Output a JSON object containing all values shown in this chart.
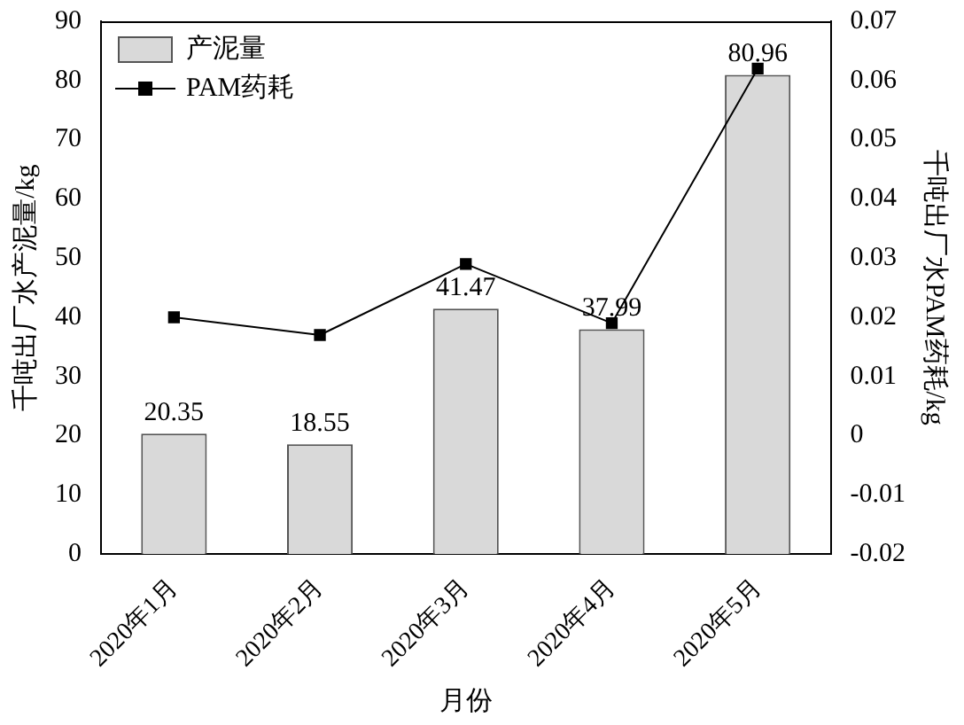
{
  "chart_data": {
    "type": "bar",
    "xlabel": "月份",
    "ylabel": "千吨出厂水产泥量/kg",
    "y2label": "千吨出厂水PAM药耗/kg",
    "categories": [
      "2020年1月",
      "2020年2月",
      "2020年3月",
      "2020年4月",
      "2020年5月"
    ],
    "series": [
      {
        "name": "产泥量",
        "color": "#d9d9d9",
        "values": [
          20.35,
          18.55,
          41.47,
          37.99,
          80.96
        ],
        "value_labels": [
          "20.35",
          "18.55",
          "41.47",
          "37.99",
          "80.96"
        ]
      },
      {
        "name": "PAM药耗",
        "type": "line",
        "axis": "y2",
        "color": "#000000",
        "marker": "square",
        "line_style": "solid",
        "values": [
          0.02,
          0.017,
          0.029,
          0.019,
          0.062
        ]
      }
    ],
    "ylim": [
      0,
      90
    ],
    "yticks": [
      0,
      10,
      20,
      30,
      40,
      50,
      60,
      70,
      80,
      90
    ],
    "y2lim": [
      -0.02,
      0.07
    ],
    "y2ticks": [
      -0.02,
      -0.01,
      0,
      0.01,
      0.02,
      0.03,
      0.04,
      0.05,
      0.06,
      0.07
    ],
    "grid": false,
    "legend": "top left"
  }
}
